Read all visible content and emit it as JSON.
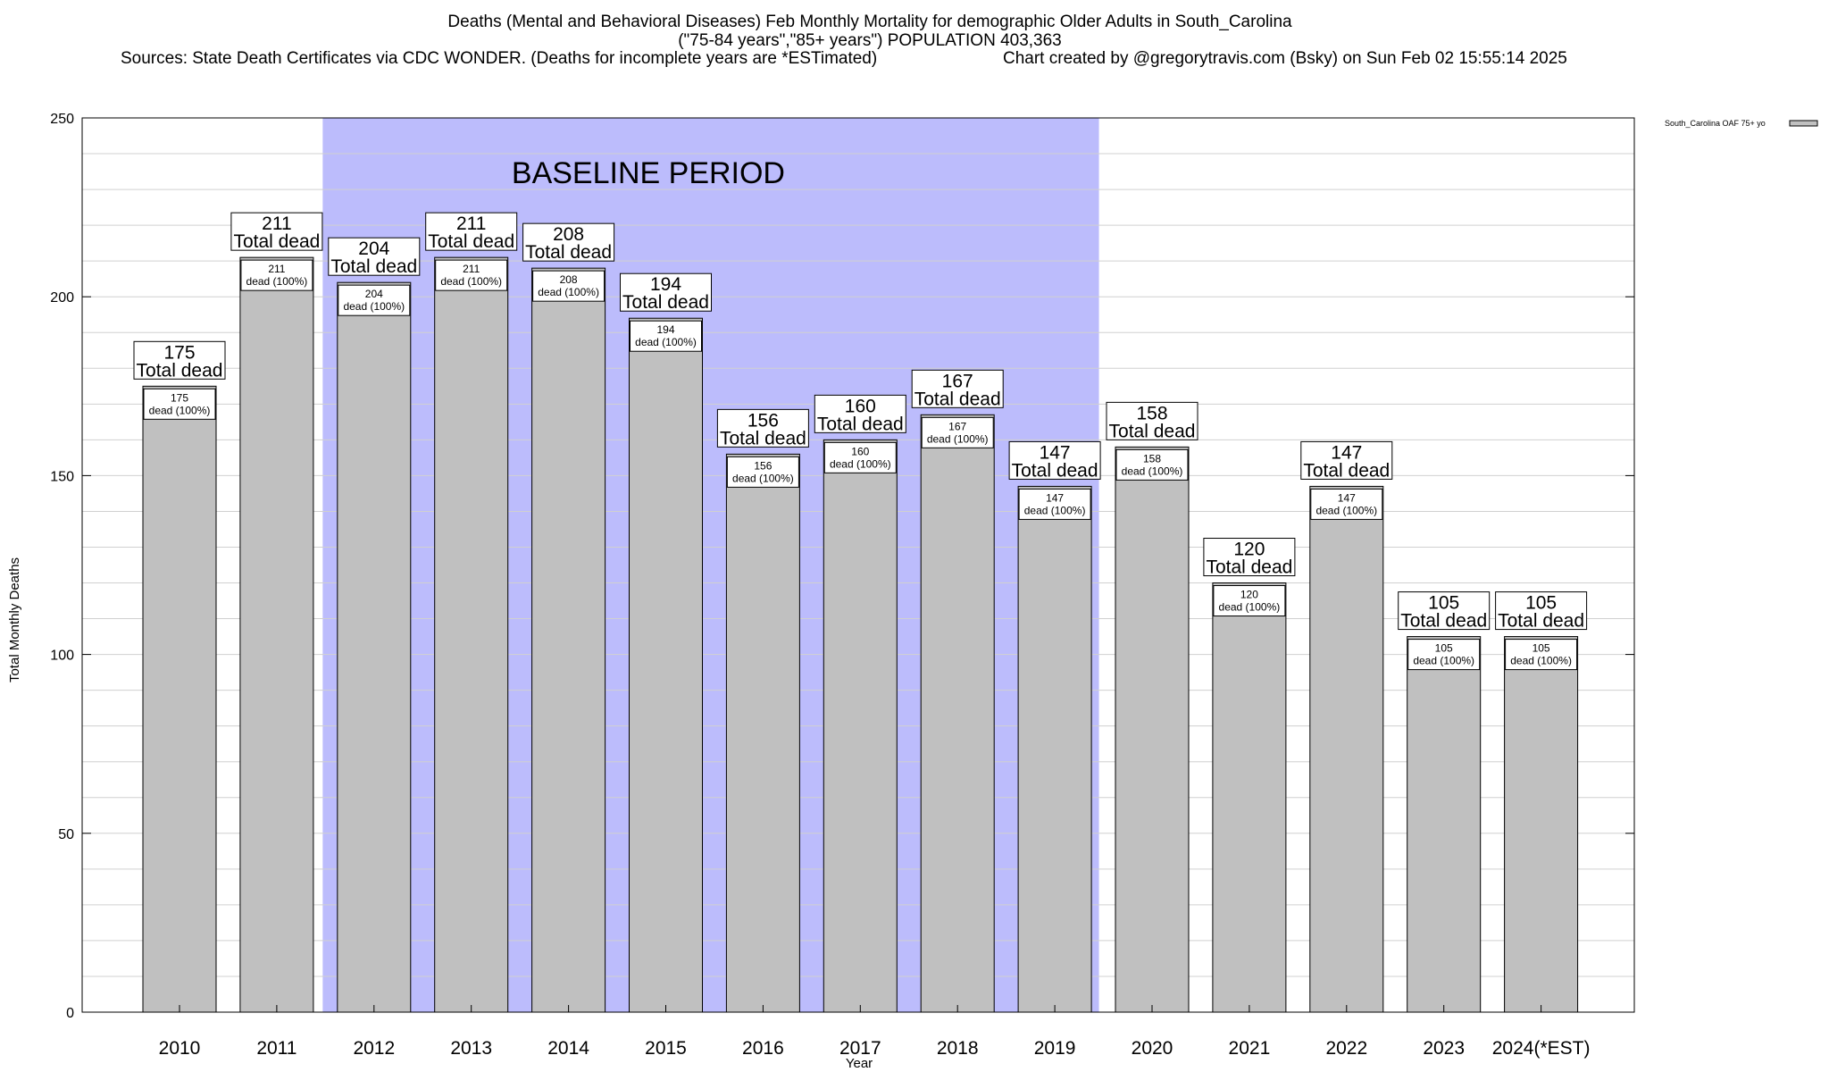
{
  "chart_data": {
    "type": "bar",
    "title_lines": [
      "Deaths (Mental and Behavioral Diseases) Feb Monthly Mortality for demographic Older Adults in South_Carolina",
      "(\"75-84 years\",\"85+ years\") POPULATION 403,363"
    ],
    "sources": "Sources: State Death Certificates via CDC WONDER. (Deaths for incomplete years are *ESTimated)",
    "credit": "Chart created by @gregorytravis.com (Bsky) on Sun Feb 02 15:55:14 2025",
    "xlabel": "Year",
    "ylabel": "Total Monthly Deaths",
    "ylim": [
      0,
      250
    ],
    "y_ticks": [
      0,
      50,
      100,
      150,
      200,
      250
    ],
    "grid": true,
    "legend_position": "top-right",
    "categories": [
      "2010",
      "2011",
      "2012",
      "2013",
      "2014",
      "2015",
      "2016",
      "2017",
      "2018",
      "2019",
      "2020",
      "2021",
      "2022",
      "2023",
      "2024(*EST)"
    ],
    "series": [
      {
        "name": "South_Carolina OAF 75+ yo",
        "values": [
          175,
          211,
          204,
          211,
          208,
          194,
          156,
          160,
          167,
          147,
          158,
          120,
          147,
          105,
          105
        ],
        "color": "#c0c0c0"
      }
    ],
    "top_label_suffix": "Total dead",
    "inner_labels": [
      "175 dead (100%)",
      "211 dead (100%)",
      "204 dead (100%)",
      "211 dead (100%)",
      "208 dead (100%)",
      "194 dead (100%)",
      "156 dead (100%)",
      "160 dead (100%)",
      "167 dead (100%)",
      "147 dead (100%)",
      "158 dead (100%)",
      "120 dead (100%)",
      "147 dead (100%)",
      "105 dead (100%)",
      "105 dead (100%)"
    ],
    "baseline_band": {
      "label": "BASELINE PERIOD",
      "from_category": "2012",
      "to_category": "2019",
      "color": "#bcbcfc"
    }
  }
}
